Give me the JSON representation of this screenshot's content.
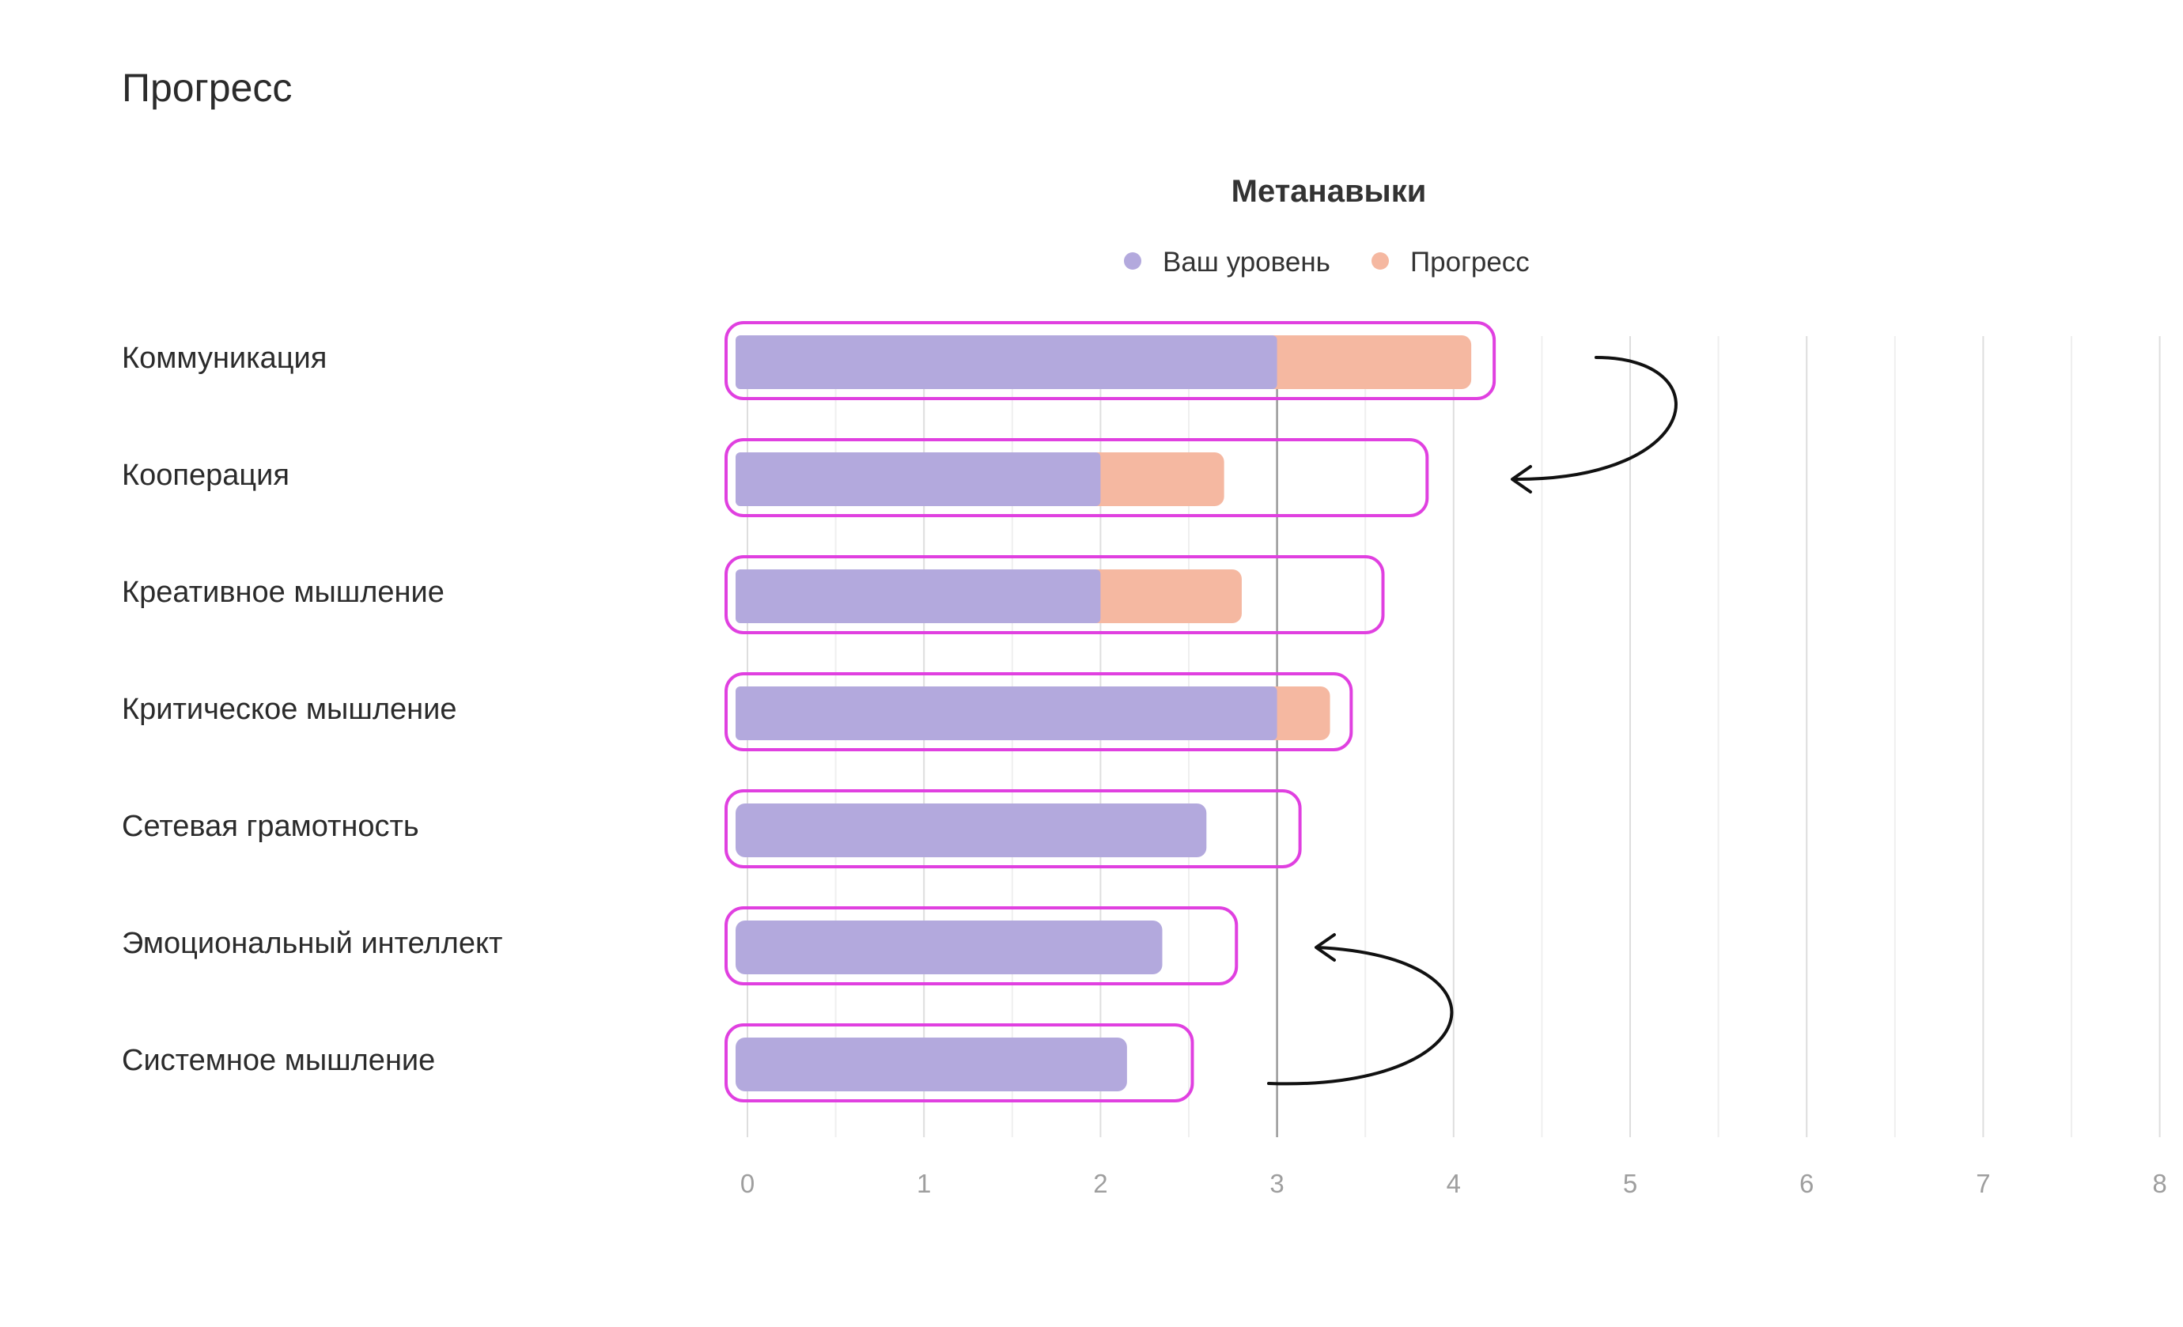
{
  "page": {
    "title": "Прогресс"
  },
  "chart_data": {
    "type": "bar",
    "orientation": "horizontal",
    "stacked": true,
    "title": "Метанавыки",
    "legend_position": "top-center",
    "grid": true,
    "xlim": [
      0,
      8
    ],
    "x_ticks": [
      0,
      1,
      2,
      3,
      4,
      5,
      6,
      7,
      8
    ],
    "categories": [
      "Коммуникация",
      "Кооперация",
      "Креативное мышление",
      "Критическое мышление",
      "Сетевая грамотность",
      "Эмоциональный интеллект",
      "Системное мышление"
    ],
    "series": [
      {
        "name": "Ваш уровень",
        "color": "#b3a9dd",
        "values": [
          3,
          2,
          2,
          3,
          2.6,
          2.35,
          2.15
        ]
      },
      {
        "name": "Прогресс",
        "color": "#f5b8a1",
        "values": [
          1.1,
          0.7,
          0.8,
          0.3,
          0,
          0,
          0
        ]
      }
    ],
    "annotations": {
      "highlight_color": "#e040e0",
      "highlight_extent": [
        4.23,
        3.85,
        3.6,
        3.42,
        3.13,
        2.77,
        2.52
      ],
      "arrows": [
        {
          "from_category": "Коммуникация",
          "to_category": "Кооперация",
          "color": "#111111"
        },
        {
          "from_category": "Системное мышление",
          "to_category": "Эмоциональный интеллект",
          "color": "#111111"
        }
      ]
    }
  }
}
